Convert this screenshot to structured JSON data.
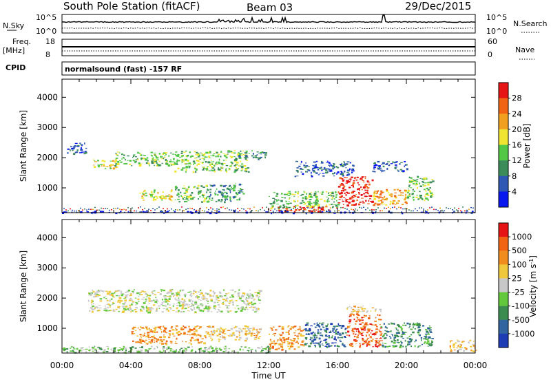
{
  "header": {
    "station": "South Pole Station (fitACF)",
    "beam": "Beam 03",
    "date": "29/Dec/2015"
  },
  "strip_panels": {
    "nsky_label": "N.Sky",
    "nsky_ticks": [
      "10^5",
      "10^0"
    ],
    "nsearch_label": "N.Search",
    "nsearch_ticks": [
      "10^5",
      "10^0"
    ],
    "freq_label": "Freq.",
    "freq_unit": "[MHz]",
    "freq_ticks": [
      "18",
      "8"
    ],
    "nave_label": "Nave",
    "nave_ticks": [
      "60",
      "0"
    ],
    "cpid_label": "CPID",
    "cpid_text": "normalsound (fast) -157 RF"
  },
  "chart_data": [
    {
      "type": "heatmap",
      "name": "power-panel",
      "title": "",
      "xlabel": "Time UT",
      "ylabel": "Slant Range [km]",
      "xlim": [
        0,
        24
      ],
      "ylim": [
        180,
        4600
      ],
      "x_ticks": [
        "00:00",
        "04:00",
        "08:00",
        "12:00",
        "16:00",
        "20:00",
        "00:00"
      ],
      "y_ticks": [
        "1000",
        "2000",
        "3000",
        "4000"
      ],
      "colorbar": {
        "label": "Power [dB]",
        "labels": [
          "4",
          "8",
          "12",
          "16",
          "20",
          "24",
          "28"
        ],
        "colors": [
          "#0a18f0",
          "#2f58b4",
          "#3c8c5a",
          "#52c846",
          "#f0e632",
          "#f0a01e",
          "#f06414",
          "#e61414"
        ]
      },
      "echo_regions": [
        {
          "t0": 0.3,
          "t1": 1.4,
          "r0": 2150,
          "r1": 2550,
          "level": 1
        },
        {
          "t0": 1.8,
          "t1": 3.2,
          "r0": 1650,
          "r1": 1950,
          "level": 4
        },
        {
          "t0": 3.0,
          "t1": 6.5,
          "r0": 1750,
          "r1": 2200,
          "level": 3
        },
        {
          "t0": 6.5,
          "t1": 10.8,
          "r0": 1550,
          "r1": 2250,
          "level": 3
        },
        {
          "t0": 10.2,
          "t1": 11.8,
          "r0": 1950,
          "r1": 2250,
          "level": 2
        },
        {
          "t0": 4.5,
          "t1": 6.5,
          "r0": 600,
          "r1": 950,
          "level": 4
        },
        {
          "t0": 6.5,
          "t1": 8.5,
          "r0": 550,
          "r1": 1100,
          "level": 3
        },
        {
          "t0": 8.5,
          "t1": 10.5,
          "r0": 550,
          "r1": 1150,
          "level": 2
        },
        {
          "t0": 12.0,
          "t1": 16.0,
          "r0": 350,
          "r1": 900,
          "level": 3
        },
        {
          "t0": 16.0,
          "t1": 18.0,
          "r0": 450,
          "r1": 1400,
          "level": 7
        },
        {
          "t0": 18.0,
          "t1": 20.0,
          "r0": 450,
          "r1": 1000,
          "level": 5
        },
        {
          "t0": 20.0,
          "t1": 21.5,
          "r0": 600,
          "r1": 1400,
          "level": 3
        },
        {
          "t0": 13.5,
          "t1": 17.0,
          "r0": 1400,
          "r1": 1900,
          "level": 1
        },
        {
          "t0": 18.0,
          "t1": 20.0,
          "r0": 1550,
          "r1": 1900,
          "level": 1
        },
        {
          "t0": 12.5,
          "t1": 15.5,
          "r0": 200,
          "r1": 400,
          "level": 7
        },
        {
          "t0": 0.0,
          "t1": 24.0,
          "r0": 190,
          "r1": 250,
          "level": 0
        }
      ]
    },
    {
      "type": "heatmap",
      "name": "velocity-panel",
      "title": "",
      "xlabel": "Time UT",
      "ylabel": "Slant Range [km]",
      "xlim": [
        0,
        24
      ],
      "ylim": [
        180,
        4600
      ],
      "x_ticks": [
        "00:00",
        "04:00",
        "08:00",
        "12:00",
        "16:00",
        "20:00",
        "00:00"
      ],
      "y_ticks": [
        "1000",
        "2000",
        "3000",
        "4000"
      ],
      "colorbar": {
        "label": "Velocity [m s-1]",
        "labels": [
          "1000",
          "500",
          "100",
          "25",
          "-25",
          "-100",
          "-500",
          "-1000"
        ],
        "colors": [
          "#1e3cb4",
          "#3264a0",
          "#3c8c50",
          "#64c83c",
          "#c8c8c8",
          "#f0c83c",
          "#f08c1e",
          "#f06414",
          "#e61414"
        ]
      },
      "echo_regions": [
        {
          "t0": 1.5,
          "t1": 11.5,
          "r0": 1550,
          "r1": 2300,
          "level": 4
        },
        {
          "t0": 4.0,
          "t1": 8.5,
          "r0": 500,
          "r1": 1100,
          "level": 6
        },
        {
          "t0": 8.5,
          "t1": 11.5,
          "r0": 600,
          "r1": 1100,
          "level": 5
        },
        {
          "t0": 12.0,
          "t1": 14.0,
          "r0": 300,
          "r1": 1100,
          "level": 6
        },
        {
          "t0": 14.0,
          "t1": 16.5,
          "r0": 400,
          "r1": 1200,
          "level": 1
        },
        {
          "t0": 16.5,
          "t1": 18.5,
          "r0": 400,
          "r1": 1500,
          "level": 7
        },
        {
          "t0": 18.5,
          "t1": 21.5,
          "r0": 400,
          "r1": 1200,
          "level": 2
        },
        {
          "t0": 0.0,
          "t1": 12.0,
          "r0": 200,
          "r1": 420,
          "level": 3
        },
        {
          "t0": 16.5,
          "t1": 18.5,
          "r0": 1550,
          "r1": 1750,
          "level": 5
        },
        {
          "t0": 22.5,
          "t1": 24.0,
          "r0": 250,
          "r1": 650,
          "level": 5
        }
      ]
    }
  ]
}
